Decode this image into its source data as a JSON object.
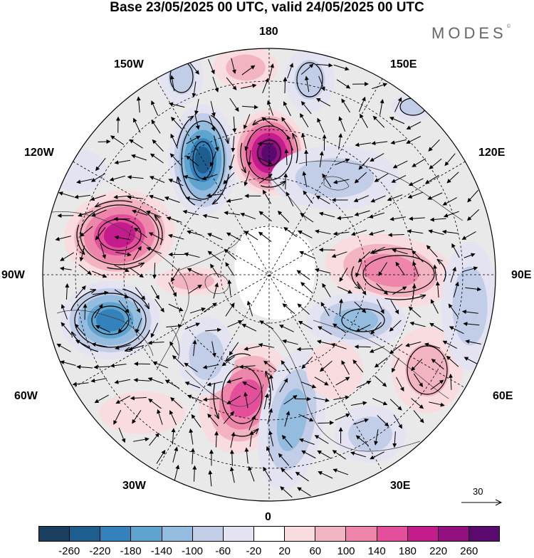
{
  "title": "Base 23/05/2025 00 UTC, valid 24/05/2025 00 UTC",
  "logo": {
    "text": "MODES",
    "mark": "©"
  },
  "longitude_labels": {
    "top": "180",
    "top_left": "150W",
    "top_right": "150E",
    "upper_left": "120W",
    "upper_right": "120E",
    "left": "90W",
    "right": "90E",
    "lower_left": "60W",
    "lower_right": "60E",
    "bottom_left": "30W",
    "bottom_right": "30E",
    "bottom": "0"
  },
  "wind_reference": {
    "value": "30"
  },
  "colorbar": {
    "colors": [
      "#1a3e5e",
      "#1e5e8e",
      "#3382bc",
      "#5fa3cf",
      "#93bcde",
      "#c2cde7",
      "#e3e3f2",
      "#ffffff",
      "#f8dcdf",
      "#f3b4c2",
      "#ee85aa",
      "#e34f9a",
      "#c41c8d",
      "#92107f",
      "#5a0a6e"
    ],
    "tick_labels": [
      "-260",
      "-220",
      "-180",
      "-140",
      "-100",
      "-60",
      "-20",
      "20",
      "60",
      "100",
      "140",
      "180",
      "220",
      "260"
    ]
  },
  "map": {
    "projection": "north-polar-stereographic",
    "field_colors": {
      "neutral": "#e9e9e9",
      "pole": "#ffffff",
      "coast": "#444444",
      "grid": "#000000"
    }
  }
}
